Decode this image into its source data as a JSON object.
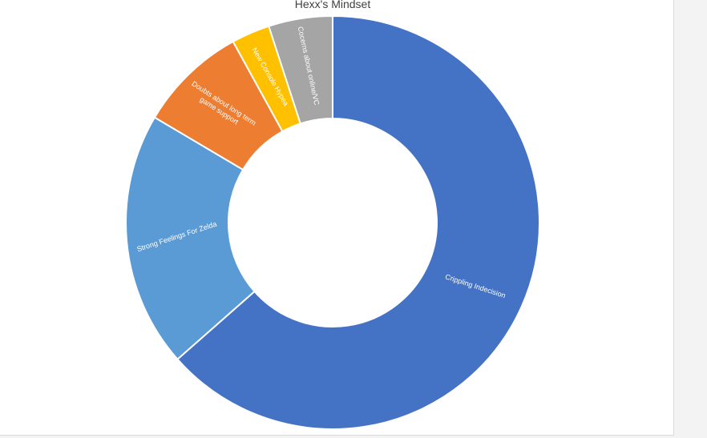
{
  "chart_data": {
    "type": "pie",
    "title": "Hexx's Mindset",
    "donut": true,
    "series": [
      {
        "values": [
          {
            "label": "Crippling Indecision",
            "value": 63.5,
            "color": "#4472C4"
          },
          {
            "label": "Strong Feelings For Zelda",
            "value": 20,
            "color": "#5B9BD5"
          },
          {
            "label": "Doubts about long term game support",
            "value": 8.5,
            "color": "#ED7D31"
          },
          {
            "label": "New Console Hypea",
            "value": 3,
            "color": "#FFC000"
          },
          {
            "label": "Cocerns about online/VC",
            "value": 5,
            "color": "#A5A5A5"
          }
        ]
      }
    ],
    "legend": "none",
    "data_labels": "category-name-inside"
  }
}
